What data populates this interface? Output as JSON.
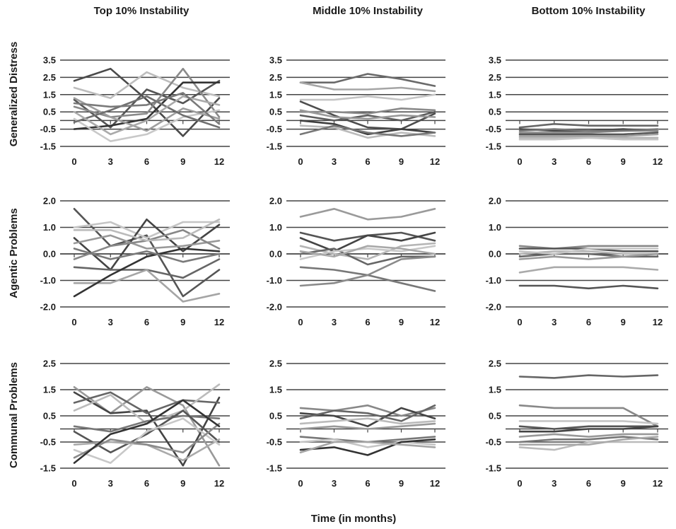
{
  "figure": {
    "column_titles": [
      "Top 10% Instability",
      "Middle 10% Instability",
      "Bottom 10% Instability"
    ],
    "row_labels": [
      "Generalized Distress",
      "Agentic Problems",
      "Communal Problems"
    ],
    "x_axis_title": "Time (in months)"
  },
  "chart_data": [
    {
      "type": "line",
      "row": "Generalized Distress",
      "column": "Top 10% Instability",
      "x": [
        0,
        3,
        6,
        9,
        12
      ],
      "ylim": [
        -1.5,
        3.5
      ],
      "yticks": [
        3.5,
        2.5,
        1.5,
        0.5,
        -0.5,
        -1.5
      ],
      "grid": true,
      "series": [
        {
          "values": [
            2.3,
            3.0,
            1.2,
            -0.9,
            1.3
          ],
          "color": "#4a4a4a"
        },
        {
          "values": [
            1.9,
            1.3,
            2.8,
            1.9,
            1.4
          ],
          "color": "#bdbdbd"
        },
        {
          "values": [
            1.2,
            -0.4,
            1.8,
            1.0,
            2.3
          ],
          "color": "#555555"
        },
        {
          "values": [
            0.8,
            0.2,
            0.4,
            3.0,
            0.2
          ],
          "color": "#8a8a8a"
        },
        {
          "values": [
            -0.5,
            -0.3,
            0.1,
            2.2,
            2.2
          ],
          "color": "#333333"
        },
        {
          "values": [
            0.1,
            -1.2,
            -0.8,
            0.2,
            0.6
          ],
          "color": "#c8c8c8"
        },
        {
          "values": [
            1.3,
            0.2,
            -0.6,
            0.7,
            0.1
          ],
          "color": "#9e9e9e"
        },
        {
          "values": [
            -0.1,
            0.6,
            1.4,
            0.3,
            -0.4
          ],
          "color": "#6f6f6f"
        },
        {
          "values": [
            0.5,
            -0.8,
            0.0,
            1.4,
            0.9
          ],
          "color": "#aaaaaa"
        },
        {
          "values": [
            1.0,
            0.8,
            0.9,
            1.6,
            -0.2
          ],
          "color": "#7a7a7a"
        }
      ]
    },
    {
      "type": "line",
      "row": "Generalized Distress",
      "column": "Middle 10% Instability",
      "x": [
        0,
        3,
        6,
        9,
        12
      ],
      "ylim": [
        -1.5,
        3.5
      ],
      "yticks": [
        3.5,
        2.5,
        1.5,
        0.5,
        -0.5,
        -1.5
      ],
      "grid": true,
      "series": [
        {
          "values": [
            2.2,
            2.2,
            2.7,
            2.4,
            2.0
          ],
          "color": "#6a6a6a"
        },
        {
          "values": [
            2.2,
            1.8,
            1.8,
            1.9,
            1.7
          ],
          "color": "#a5a5a5"
        },
        {
          "values": [
            1.2,
            1.2,
            1.4,
            1.2,
            1.5
          ],
          "color": "#c5c5c5"
        },
        {
          "values": [
            1.1,
            0.3,
            -0.4,
            -0.5,
            0.4
          ],
          "color": "#4d4d4d"
        },
        {
          "values": [
            0.5,
            0.5,
            0.4,
            0.7,
            0.6
          ],
          "color": "#8a8a8a"
        },
        {
          "values": [
            0.3,
            0.0,
            0.3,
            0.0,
            0.5
          ],
          "color": "#5c5c5c"
        },
        {
          "values": [
            0.0,
            -0.2,
            -0.8,
            -0.5,
            -0.7
          ],
          "color": "#3f3f3f"
        },
        {
          "values": [
            -0.3,
            -0.4,
            -1.0,
            -0.7,
            -0.9
          ],
          "color": "#bbbbbb"
        },
        {
          "values": [
            -0.8,
            -0.3,
            -0.7,
            -0.9,
            -0.7
          ],
          "color": "#777777"
        },
        {
          "values": [
            0.6,
            0.2,
            0.1,
            0.3,
            0.2
          ],
          "color": "#999999"
        }
      ]
    },
    {
      "type": "line",
      "row": "Generalized Distress",
      "column": "Bottom 10% Instability",
      "x": [
        0,
        3,
        6,
        9,
        12
      ],
      "ylim": [
        -1.5,
        3.5
      ],
      "yticks": [
        3.5,
        2.5,
        1.5,
        0.5,
        -0.5,
        -1.5
      ],
      "grid": true,
      "series": [
        {
          "values": [
            -0.4,
            -0.2,
            -0.3,
            -0.3,
            -0.3
          ],
          "color": "#666666"
        },
        {
          "values": [
            -0.5,
            -0.6,
            -0.6,
            -0.5,
            -0.6
          ],
          "color": "#444444"
        },
        {
          "values": [
            -0.7,
            -0.7,
            -0.7,
            -0.6,
            -0.6
          ],
          "color": "#8c8c8c"
        },
        {
          "values": [
            -0.8,
            -0.8,
            -0.8,
            -0.8,
            -0.7
          ],
          "color": "#555555"
        },
        {
          "values": [
            -0.9,
            -0.9,
            -0.9,
            -0.9,
            -0.8
          ],
          "color": "#a0a0a0"
        },
        {
          "values": [
            -1.0,
            -1.0,
            -1.0,
            -1.0,
            -1.0
          ],
          "color": "#b5b5b5"
        },
        {
          "values": [
            -1.1,
            -1.1,
            -1.0,
            -1.1,
            -1.1
          ],
          "color": "#c5c5c5"
        },
        {
          "values": [
            -0.6,
            -0.5,
            -0.6,
            -0.6,
            -0.5
          ],
          "color": "#777777"
        }
      ]
    },
    {
      "type": "line",
      "row": "Agentic Problems",
      "column": "Top 10% Instability",
      "x": [
        0,
        3,
        6,
        9,
        12
      ],
      "ylim": [
        -2.0,
        2.0
      ],
      "yticks": [
        2.0,
        1.0,
        0.0,
        -1.0,
        -2.0
      ],
      "grid": true,
      "series": [
        {
          "values": [
            1.7,
            0.3,
            0.7,
            -1.6,
            -0.6
          ],
          "color": "#555555"
        },
        {
          "values": [
            1.0,
            1.2,
            0.6,
            1.2,
            1.2
          ],
          "color": "#c5c5c5"
        },
        {
          "values": [
            0.6,
            -0.6,
            1.3,
            0.1,
            1.1
          ],
          "color": "#444444"
        },
        {
          "values": [
            0.4,
            0.7,
            0.2,
            0.3,
            0.5
          ],
          "color": "#999999"
        },
        {
          "values": [
            -0.2,
            0.3,
            0.5,
            0.9,
            0.2
          ],
          "color": "#888888"
        },
        {
          "values": [
            -0.5,
            -0.6,
            -0.6,
            -0.9,
            -0.2
          ],
          "color": "#666666"
        },
        {
          "values": [
            -1.1,
            -1.1,
            -0.6,
            -1.8,
            -1.5
          ],
          "color": "#a5a5a5"
        },
        {
          "values": [
            -1.6,
            -0.8,
            -0.1,
            0.2,
            0.1
          ],
          "color": "#333333"
        },
        {
          "values": [
            0.9,
            0.9,
            0.5,
            0.6,
            1.3
          ],
          "color": "#bbbbbb"
        },
        {
          "values": [
            0.2,
            -0.2,
            0.1,
            -0.3,
            0.0
          ],
          "color": "#7a7a7a"
        }
      ]
    },
    {
      "type": "line",
      "row": "Agentic Problems",
      "column": "Middle 10% Instability",
      "x": [
        0,
        3,
        6,
        9,
        12
      ],
      "ylim": [
        -2.0,
        2.0
      ],
      "yticks": [
        2.0,
        1.0,
        0.0,
        -1.0,
        -2.0
      ],
      "grid": true,
      "series": [
        {
          "values": [
            1.4,
            1.7,
            1.3,
            1.4,
            1.7
          ],
          "color": "#9a9a9a"
        },
        {
          "values": [
            0.8,
            0.5,
            0.7,
            0.8,
            0.5
          ],
          "color": "#555555"
        },
        {
          "values": [
            0.6,
            0.1,
            0.7,
            0.5,
            0.8
          ],
          "color": "#444444"
        },
        {
          "values": [
            0.3,
            0.0,
            -0.2,
            0.3,
            0.4
          ],
          "color": "#b5b5b5"
        },
        {
          "values": [
            0.0,
            0.2,
            -0.4,
            -0.1,
            -0.1
          ],
          "color": "#666666"
        },
        {
          "values": [
            -0.2,
            0.1,
            0.2,
            0.1,
            0.3
          ],
          "color": "#c8c8c8"
        },
        {
          "values": [
            -0.5,
            -0.6,
            -0.8,
            -1.1,
            -1.4
          ],
          "color": "#777777"
        },
        {
          "values": [
            -1.2,
            -1.1,
            -0.8,
            -0.2,
            -0.1
          ],
          "color": "#8a8a8a"
        },
        {
          "values": [
            0.1,
            -0.1,
            0.3,
            0.2,
            0.0
          ],
          "color": "#a8a8a8"
        }
      ]
    },
    {
      "type": "line",
      "row": "Agentic Problems",
      "column": "Bottom 10% Instability",
      "x": [
        0,
        3,
        6,
        9,
        12
      ],
      "ylim": [
        -2.0,
        2.0
      ],
      "yticks": [
        2.0,
        1.0,
        0.0,
        -1.0,
        -2.0
      ],
      "grid": true,
      "series": [
        {
          "values": [
            0.3,
            0.2,
            0.3,
            0.3,
            0.3
          ],
          "color": "#888888"
        },
        {
          "values": [
            0.2,
            0.2,
            0.2,
            0.1,
            0.1
          ],
          "color": "#555555"
        },
        {
          "values": [
            0.0,
            0.1,
            0.1,
            0.0,
            0.0
          ],
          "color": "#b5b5b5"
        },
        {
          "values": [
            -0.1,
            0.0,
            0.0,
            -0.1,
            -0.1
          ],
          "color": "#666666"
        },
        {
          "values": [
            -0.2,
            -0.1,
            -0.2,
            -0.1,
            0.0
          ],
          "color": "#999999"
        },
        {
          "values": [
            -0.7,
            -0.5,
            -0.5,
            -0.5,
            -0.6
          ],
          "color": "#aaaaaa"
        },
        {
          "values": [
            -1.2,
            -1.2,
            -1.3,
            -1.2,
            -1.3
          ],
          "color": "#555555"
        },
        {
          "values": [
            0.1,
            0.0,
            0.2,
            0.2,
            0.2
          ],
          "color": "#c5c5c5"
        }
      ]
    },
    {
      "type": "line",
      "row": "Communal Problems",
      "column": "Top 10% Instability",
      "x": [
        0,
        3,
        6,
        9,
        12
      ],
      "ylim": [
        -1.5,
        2.5
      ],
      "yticks": [
        2.5,
        1.5,
        0.5,
        -0.5,
        -1.5
      ],
      "grid": true,
      "series": [
        {
          "values": [
            1.6,
            0.6,
            1.6,
            0.9,
            -1.4
          ],
          "color": "#999999"
        },
        {
          "values": [
            1.4,
            0.6,
            0.7,
            -1.4,
            1.2
          ],
          "color": "#444444"
        },
        {
          "values": [
            1.0,
            1.4,
            0.6,
            1.1,
            1.0
          ],
          "color": "#666666"
        },
        {
          "values": [
            0.7,
            1.3,
            0.2,
            0.7,
            1.7
          ],
          "color": "#bbbbbb"
        },
        {
          "values": [
            0.1,
            -0.1,
            0.3,
            0.5,
            0.4
          ],
          "color": "#777777"
        },
        {
          "values": [
            -0.1,
            -0.9,
            -0.2,
            0.7,
            -0.5
          ],
          "color": "#555555"
        },
        {
          "values": [
            -0.6,
            -0.5,
            -0.6,
            -1.2,
            -0.4
          ],
          "color": "#aaaaaa"
        },
        {
          "values": [
            -0.8,
            -1.3,
            -0.1,
            0.4,
            -0.6
          ],
          "color": "#c8c8c8"
        },
        {
          "values": [
            -1.1,
            -0.4,
            -0.6,
            -0.9,
            0.2
          ],
          "color": "#8a8a8a"
        },
        {
          "values": [
            -1.3,
            -0.2,
            0.2,
            1.1,
            0.1
          ],
          "color": "#333333"
        }
      ]
    },
    {
      "type": "line",
      "row": "Communal Problems",
      "column": "Middle 10% Instability",
      "x": [
        0,
        3,
        6,
        9,
        12
      ],
      "ylim": [
        -1.5,
        2.5
      ],
      "yticks": [
        2.5,
        1.5,
        0.5,
        -0.5,
        -1.5
      ],
      "grid": true,
      "series": [
        {
          "values": [
            0.8,
            0.7,
            0.9,
            0.5,
            0.8
          ],
          "color": "#888888"
        },
        {
          "values": [
            0.6,
            0.5,
            0.1,
            0.8,
            0.4
          ],
          "color": "#444444"
        },
        {
          "values": [
            0.4,
            0.7,
            0.6,
            0.3,
            0.9
          ],
          "color": "#666666"
        },
        {
          "values": [
            0.2,
            0.3,
            0.4,
            0.2,
            0.3
          ],
          "color": "#bbbbbb"
        },
        {
          "values": [
            0.0,
            0.1,
            0.0,
            0.1,
            0.2
          ],
          "color": "#999999"
        },
        {
          "values": [
            -0.3,
            -0.4,
            -0.5,
            -0.4,
            -0.3
          ],
          "color": "#777777"
        },
        {
          "values": [
            -0.5,
            -0.4,
            -0.7,
            -0.5,
            -0.6
          ],
          "color": "#c5c5c5"
        },
        {
          "values": [
            -0.8,
            -0.7,
            -1.0,
            -0.5,
            -0.4
          ],
          "color": "#333333"
        },
        {
          "values": [
            -0.9,
            -0.5,
            -0.5,
            -0.6,
            -0.7
          ],
          "color": "#a5a5a5"
        }
      ]
    },
    {
      "type": "line",
      "row": "Communal Problems",
      "column": "Bottom 10% Instability",
      "x": [
        0,
        3,
        6,
        9,
        12
      ],
      "ylim": [
        -1.5,
        2.5
      ],
      "yticks": [
        2.5,
        1.5,
        0.5,
        -0.5,
        -1.5
      ],
      "grid": true,
      "series": [
        {
          "values": [
            2.0,
            1.95,
            2.05,
            2.0,
            2.05
          ],
          "color": "#666666"
        },
        {
          "values": [
            0.9,
            0.8,
            0.8,
            0.8,
            0.1
          ],
          "color": "#888888"
        },
        {
          "values": [
            0.3,
            0.3,
            0.3,
            0.3,
            0.2
          ],
          "color": "#c5c5c5"
        },
        {
          "values": [
            0.1,
            0.0,
            0.1,
            0.1,
            0.1
          ],
          "color": "#555555"
        },
        {
          "values": [
            -0.1,
            -0.1,
            0.0,
            0.0,
            0.1
          ],
          "color": "#444444"
        },
        {
          "values": [
            -0.3,
            -0.2,
            -0.3,
            -0.2,
            -0.2
          ],
          "color": "#999999"
        },
        {
          "values": [
            -0.5,
            -0.4,
            -0.4,
            -0.3,
            -0.4
          ],
          "color": "#777777"
        },
        {
          "values": [
            -0.7,
            -0.8,
            -0.5,
            -0.5,
            -0.5
          ],
          "color": "#bbbbbb"
        },
        {
          "values": [
            -0.6,
            -0.6,
            -0.6,
            -0.4,
            -0.3
          ],
          "color": "#aaaaaa"
        }
      ]
    }
  ]
}
